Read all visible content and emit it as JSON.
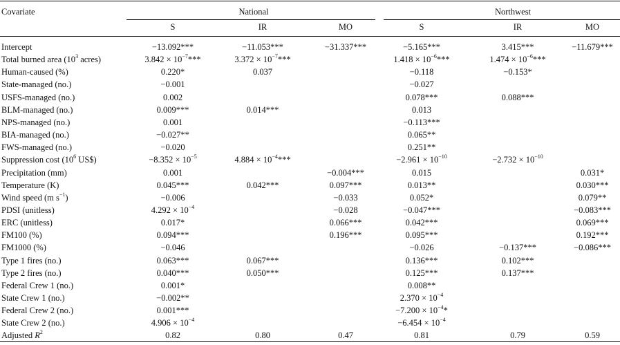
{
  "table": {
    "covariate_header": "Covariate",
    "groups": [
      "National",
      "Northwest"
    ],
    "subheaders": [
      "S",
      "IR",
      "MO",
      "S",
      "IR",
      "MO"
    ],
    "rows": [
      {
        "label": "Intercept",
        "cells": [
          "−13.092***",
          "−11.053***",
          "−31.337***",
          "−5.165***",
          "3.415***",
          "−11.679***"
        ]
      },
      {
        "label": "Total burned area (10^3 acres)",
        "cells": [
          "3.842 × 10^−7***",
          "3.372 × 10^−7***",
          "",
          "1.418 × 10^−6***",
          "1.474 × 10^−6***",
          ""
        ]
      },
      {
        "label": "Human-caused (%)",
        "cells": [
          "0.220*",
          "0.037",
          "",
          "−0.118",
          "−0.153*",
          ""
        ]
      },
      {
        "label": "State-managed (no.)",
        "cells": [
          "−0.001",
          "",
          "",
          "−0.027",
          "",
          ""
        ]
      },
      {
        "label": "USFS-managed (no.)",
        "cells": [
          "0.002",
          "",
          "",
          "0.078***",
          "0.088***",
          ""
        ]
      },
      {
        "label": "BLM-managed (no.)",
        "cells": [
          "0.009***",
          "0.014***",
          "",
          "0.013",
          "",
          ""
        ]
      },
      {
        "label": "NPS-managed (no.)",
        "cells": [
          "0.001",
          "",
          "",
          "−0.113***",
          "",
          ""
        ]
      },
      {
        "label": "BIA-managed (no.)",
        "cells": [
          "−0.027**",
          "",
          "",
          "0.065**",
          "",
          ""
        ]
      },
      {
        "label": "FWS-managed (no.)",
        "cells": [
          "−0.020",
          "",
          "",
          "0.251**",
          "",
          ""
        ]
      },
      {
        "label": "Suppression cost (10^6 US$)",
        "cells": [
          "−8.352 × 10^−5",
          "4.884 × 10^−4***",
          "",
          "−2.961 × 10^−10",
          "−2.732 × 10^−10",
          ""
        ]
      },
      {
        "label": "Precipitation (mm)",
        "cells": [
          "0.001",
          "",
          "−0.004***",
          "0.015",
          "",
          "0.031*"
        ]
      },
      {
        "label": "Temperature (K)",
        "cells": [
          "0.045***",
          "0.042***",
          "0.097***",
          "0.013**",
          "",
          "0.030***"
        ]
      },
      {
        "label": "Wind speed (m s^−1)",
        "cells": [
          "−0.006",
          "",
          "−0.033",
          "0.052*",
          "",
          "0.079**"
        ]
      },
      {
        "label": "PDSI (unitless)",
        "cells": [
          "4.292 × 10^−4",
          "",
          "−0.028",
          "−0.047***",
          "",
          "−0.083***"
        ]
      },
      {
        "label": "ERC (unitless)",
        "cells": [
          "0.017*",
          "",
          "0.066***",
          "0.042***",
          "",
          "0.069***"
        ]
      },
      {
        "label": "FM100 (%)",
        "cells": [
          "0.094***",
          "",
          "0.196***",
          "0.095***",
          "",
          "0.192***"
        ]
      },
      {
        "label": "FM1000 (%)",
        "cells": [
          "−0.046",
          "",
          "",
          "−0.026",
          "−0.137***",
          "−0.086***"
        ]
      },
      {
        "label": "Type 1 fires (no.)",
        "cells": [
          "0.063***",
          "0.067***",
          "",
          "0.136***",
          "0.102***",
          ""
        ]
      },
      {
        "label": "Type 2 fires (no.)",
        "cells": [
          "0.040***",
          "0.050***",
          "",
          "0.125***",
          "0.137***",
          ""
        ]
      },
      {
        "label": "Federal Crew 1 (no.)",
        "cells": [
          "0.001*",
          "",
          "",
          "0.008**",
          "",
          ""
        ]
      },
      {
        "label": "State Crew 1 (no.)",
        "cells": [
          "−0.002**",
          "",
          "",
          "2.370 × 10^−4",
          "",
          ""
        ]
      },
      {
        "label": "Federal Crew 2 (no.)",
        "cells": [
          "0.001***",
          "",
          "",
          "−7.200 × 10^−4*",
          "",
          ""
        ]
      },
      {
        "label": "State Crew 2 (no.)",
        "cells": [
          "4.906 × 10^−4",
          "",
          "",
          "−6.454 × 10^−4",
          "",
          ""
        ]
      },
      {
        "label": "Adjusted R^2",
        "cells": [
          "0.82",
          "0.80",
          "0.47",
          "0.81",
          "0.79",
          "0.59"
        ]
      }
    ]
  }
}
